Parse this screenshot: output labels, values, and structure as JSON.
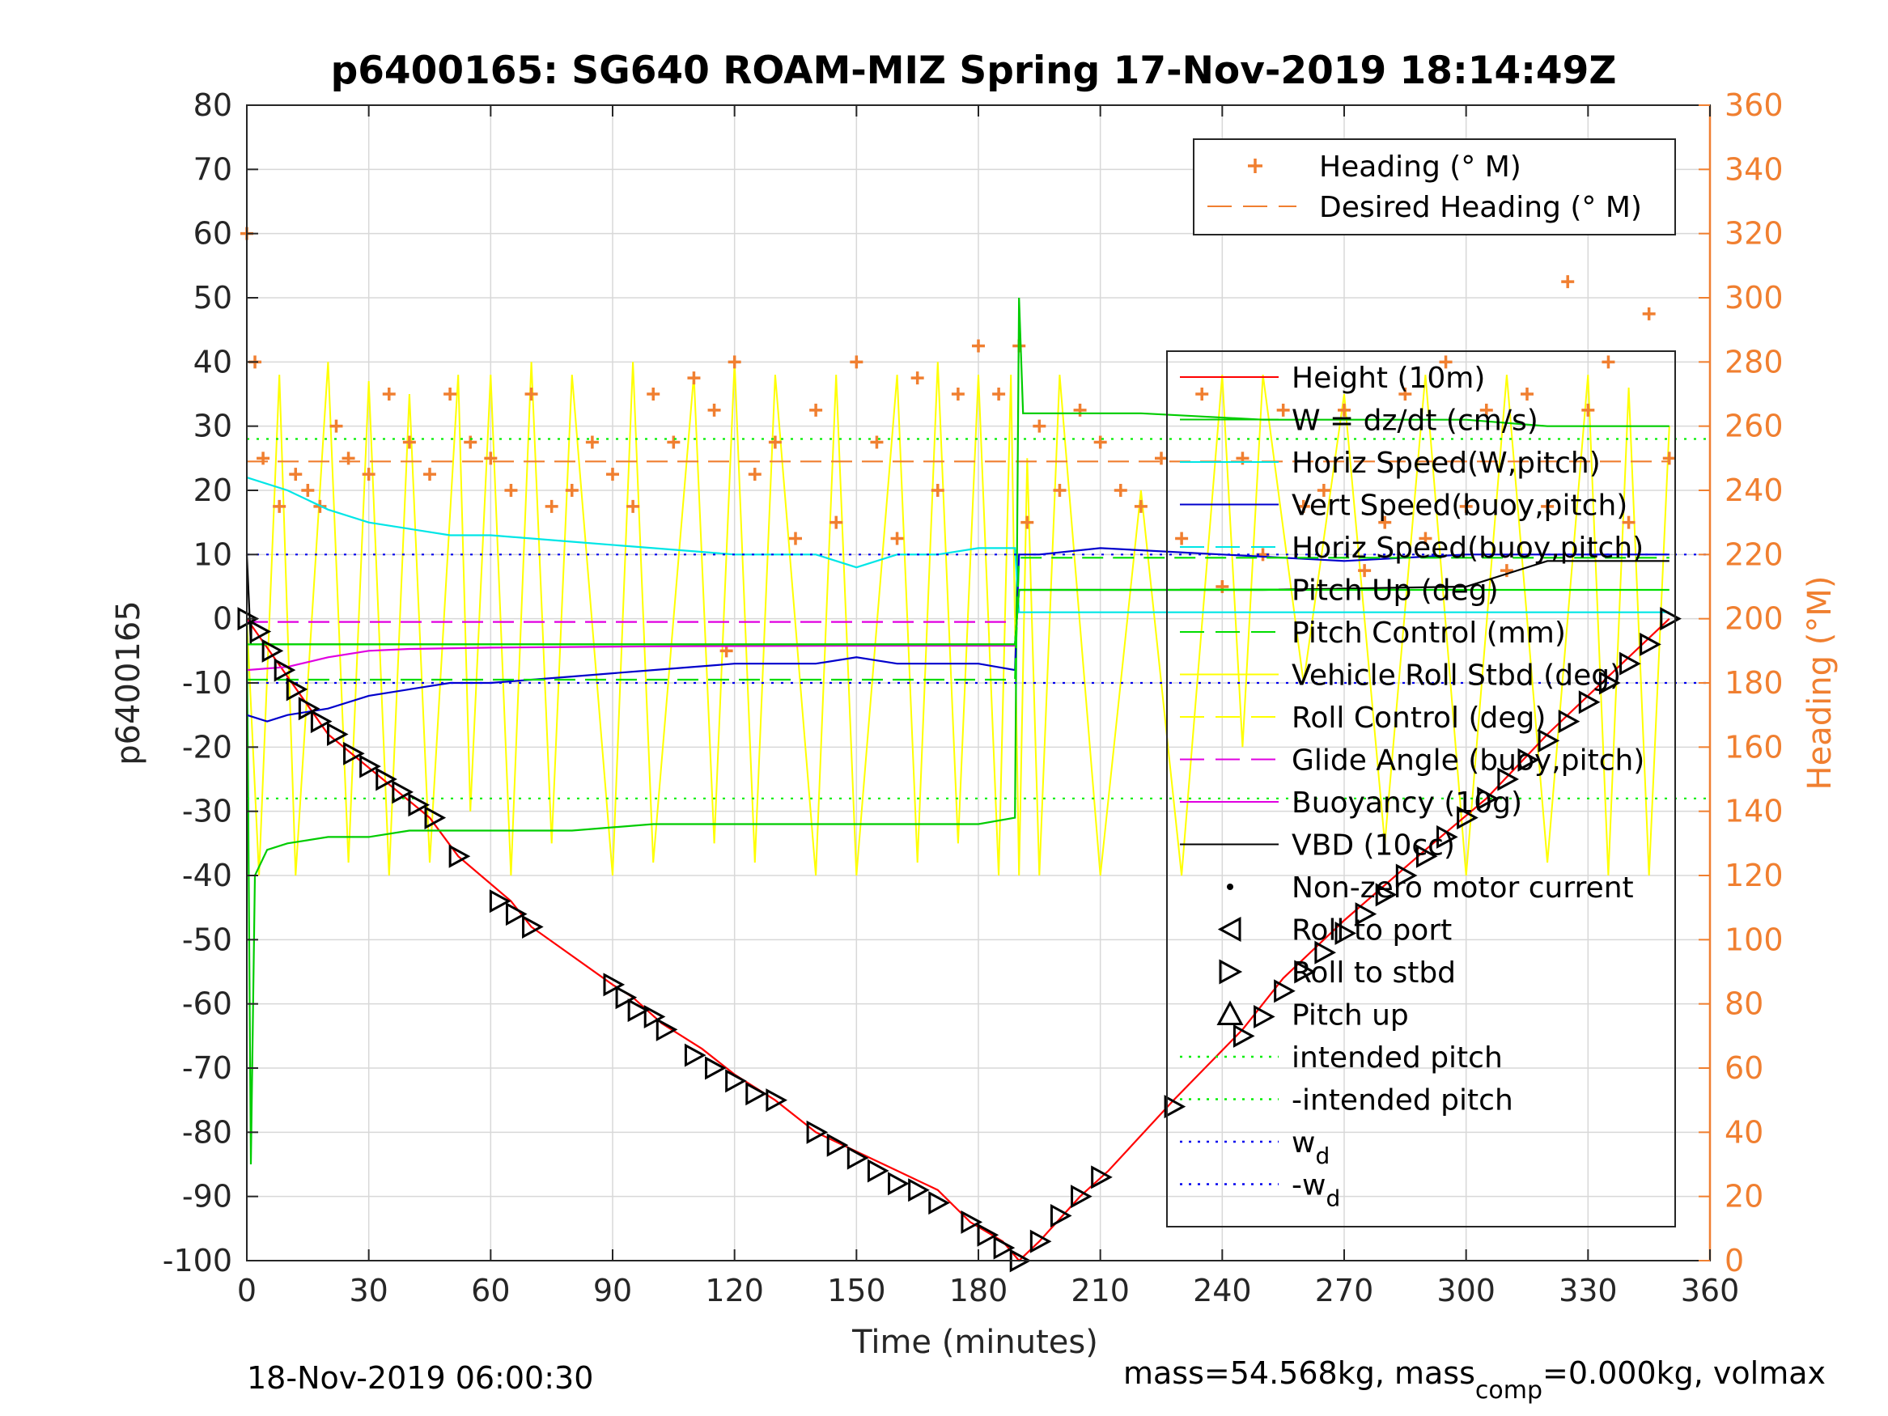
{
  "chart_data": {
    "type": "line",
    "title": "p6400165: SG640 ROAM-MIZ Spring 17-Nov-2019 18:14:49Z",
    "xlabel": "Time (minutes)",
    "ylabel": "p6400165",
    "ylabel_right": "Heading (°M)",
    "xlim": [
      0,
      360
    ],
    "ylim": [
      -100,
      80
    ],
    "ylim_right": [
      0,
      360
    ],
    "x_ticks": [
      "0",
      "30",
      "60",
      "90",
      "120",
      "150",
      "180",
      "210",
      "240",
      "270",
      "300",
      "330",
      "360"
    ],
    "y_ticks": [
      "-100",
      "-90",
      "-80",
      "-70",
      "-60",
      "-50",
      "-40",
      "-30",
      "-20",
      "-10",
      "0",
      "10",
      "20",
      "30",
      "40",
      "50",
      "60",
      "70",
      "80"
    ],
    "y_ticks_right": [
      "0",
      "20",
      "40",
      "60",
      "80",
      "100",
      "120",
      "140",
      "160",
      "180",
      "200",
      "220",
      "240",
      "260",
      "280",
      "300",
      "320",
      "340",
      "360"
    ],
    "grid": true,
    "footer_left": "18-Nov-2019 06:00:30",
    "footer_right_main": "mass=54.568kg, mass",
    "footer_right_sub": "comp",
    "footer_right_tail": "=0.000kg, volmax",
    "colors": {
      "orange": "#f07f30",
      "red": "#ff0000",
      "green": "#00d800",
      "cyan": "#00e6e6",
      "blue": "#0000cc",
      "yellow": "#ffff00",
      "magenta": "#e000e0",
      "black": "#000000"
    },
    "legend_heading": {
      "placement": "top-right",
      "entries": [
        {
          "label": "Heading (° M)",
          "style": "plus",
          "color": "#f07f30"
        },
        {
          "label": "Desired Heading (° M)",
          "style": "dash",
          "color": "#f07f30"
        }
      ]
    },
    "legend_main": {
      "placement": "right",
      "entries": [
        {
          "label": "Height (10m)",
          "style": "line",
          "color": "#ff0000"
        },
        {
          "label": "W = dz/dt (cm/s)",
          "style": "line",
          "color": "#00cc00"
        },
        {
          "label": "Horiz Speed(W,pitch)",
          "style": "line",
          "color": "#00e6e6"
        },
        {
          "label": "Vert Speed(buoy,pitch)",
          "style": "line",
          "color": "#0000cc"
        },
        {
          "label": "Horiz Speed(buoy,pitch)",
          "style": "dash",
          "color": "#00e6e6"
        },
        {
          "label": "Pitch Up (deg)",
          "style": "line",
          "color": "#00dd00"
        },
        {
          "label": "Pitch Control (mm)",
          "style": "dash",
          "color": "#00dd00"
        },
        {
          "label": "Vehicle Roll Stbd (deg)",
          "style": "line",
          "color": "#ffff00"
        },
        {
          "label": "Roll Control (deg)",
          "style": "dash",
          "color": "#ffff00"
        },
        {
          "label": "Glide Angle (buoy,pitch)",
          "style": "dash",
          "color": "#e000e0"
        },
        {
          "label": "Buoyancy (10g)",
          "style": "line",
          "color": "#e000e0"
        },
        {
          "label": "VBD (10cc)",
          "style": "line",
          "color": "#000000"
        },
        {
          "label": "Non-zero motor current",
          "style": "dot",
          "color": "#000000"
        },
        {
          "label": "Roll to port",
          "style": "tri-left",
          "color": "#000000"
        },
        {
          "label": "Roll to stbd",
          "style": "tri-right",
          "color": "#000000"
        },
        {
          "label": "Pitch up",
          "style": "tri-up",
          "color": "#000000"
        },
        {
          "label": "intended pitch",
          "style": "dot-line",
          "color": "#00ee00"
        },
        {
          "label": "-intended pitch",
          "style": "dot-line",
          "color": "#00ee00"
        },
        {
          "label": "w",
          "sub": "d",
          "style": "dot-line",
          "color": "#0000ee"
        },
        {
          "label": "-w",
          "sub": "d",
          "style": "dot-line",
          "color": "#0000ee"
        }
      ]
    },
    "series": [
      {
        "name": "Height (10m)",
        "color": "#ff0000",
        "x": [
          0,
          20,
          45,
          52,
          65,
          70,
          90,
          95,
          102,
          112,
          120,
          130,
          140,
          150,
          160,
          170,
          178,
          186,
          190,
          195,
          205,
          212,
          228,
          245,
          255,
          270,
          290,
          305,
          320,
          335,
          350
        ],
        "y": [
          0,
          -18,
          -31,
          -37,
          -44,
          -48,
          -57,
          -59,
          -63,
          -67,
          -71,
          -75,
          -80,
          -83,
          -86,
          -89,
          -94,
          -97,
          -100,
          -97,
          -90,
          -86,
          -75,
          -64,
          -56,
          -47,
          -36,
          -28,
          -18,
          -9,
          0
        ]
      },
      {
        "name": "Heading (° M)",
        "color": "#f07f30",
        "axis": "right",
        "x": [
          0,
          2,
          4,
          8,
          12,
          15,
          18,
          22,
          25,
          30,
          35,
          40,
          45,
          50,
          55,
          60,
          65,
          70,
          75,
          80,
          85,
          90,
          95,
          100,
          105,
          110,
          115,
          118,
          120,
          125,
          130,
          135,
          140,
          145,
          150,
          155,
          160,
          165,
          170,
          175,
          180,
          185,
          190,
          192,
          195,
          200,
          205,
          210,
          215,
          220,
          225,
          230,
          235,
          240,
          245,
          250,
          255,
          260,
          265,
          270,
          275,
          280,
          285,
          290,
          295,
          300,
          305,
          310,
          315,
          320,
          325,
          330,
          335,
          340,
          345,
          350
        ],
        "y": [
          320,
          280,
          250,
          235,
          245,
          240,
          235,
          260,
          250,
          245,
          270,
          255,
          245,
          270,
          255,
          250,
          240,
          270,
          235,
          240,
          255,
          245,
          235,
          270,
          255,
          275,
          265,
          190,
          280,
          245,
          255,
          225,
          265,
          230,
          280,
          255,
          225,
          275,
          240,
          270,
          285,
          270,
          285,
          230,
          260,
          240,
          265,
          255,
          240,
          235,
          250,
          225,
          270,
          210,
          250,
          220,
          265,
          235,
          240,
          265,
          215,
          230,
          270,
          225,
          280,
          235,
          265,
          215,
          270,
          235,
          305,
          265,
          280,
          230,
          295,
          250
        ]
      },
      {
        "name": "Desired Heading (° M)",
        "color": "#f07f30",
        "axis": "right",
        "dash": true,
        "x": [
          0,
          350
        ],
        "y": [
          249,
          249
        ]
      },
      {
        "name": "W = dz/dt (cm/s)",
        "color": "#00cc00",
        "x": [
          0,
          1,
          2,
          5,
          10,
          20,
          30,
          40,
          50,
          60,
          80,
          100,
          120,
          140,
          160,
          180,
          189,
          190,
          191,
          192,
          200,
          220,
          250,
          280,
          300,
          320,
          350
        ],
        "y": [
          0,
          -85,
          -40,
          -36,
          -35,
          -34,
          -34,
          -33,
          -33,
          -33,
          -33,
          -32,
          -32,
          -32,
          -32,
          -32,
          -31,
          50,
          32,
          32,
          32,
          32,
          31,
          31,
          31,
          30,
          30
        ]
      },
      {
        "name": "Horiz Speed(W,pitch)",
        "color": "#00e6e6",
        "x": [
          0,
          10,
          20,
          30,
          40,
          50,
          60,
          80,
          100,
          120,
          140,
          150,
          160,
          170,
          180,
          189,
          190,
          200,
          250,
          300,
          350
        ],
        "y": [
          22,
          20,
          17,
          15,
          14,
          13,
          13,
          12,
          11,
          10,
          10,
          8,
          10,
          10,
          11,
          11,
          1,
          1,
          1,
          1,
          1
        ]
      },
      {
        "name": "Vert Speed(buoy,pitch)",
        "color": "#0000cc",
        "x": [
          0,
          5,
          10,
          20,
          30,
          40,
          50,
          60,
          80,
          100,
          120,
          140,
          150,
          160,
          170,
          180,
          189,
          190,
          195,
          210,
          240,
          270,
          300,
          330,
          350
        ],
        "y": [
          -15,
          -16,
          -15,
          -14,
          -12,
          -11,
          -10,
          -10,
          -9,
          -8,
          -7,
          -7,
          -6,
          -7,
          -7,
          -7,
          -8,
          10,
          10,
          11,
          10,
          9,
          10,
          10,
          10
        ]
      },
      {
        "name": "Buoyancy (10g)",
        "color": "#e000e0",
        "x": [
          0,
          10,
          20,
          30,
          40,
          60,
          100,
          150,
          189
        ],
        "y": [
          -8,
          -7.5,
          -6,
          -5,
          -4.7,
          -4.5,
          -4.3,
          -4.2,
          -4.2
        ]
      },
      {
        "name": "Glide Angle (buoy,pitch)",
        "color": "#e000e0",
        "dash": true,
        "x": [
          0,
          189
        ],
        "y": [
          -0.5,
          -0.5
        ]
      },
      {
        "name": "VBD (10cc)",
        "color": "#000000",
        "x": [
          0,
          1,
          10,
          30,
          80,
          120,
          160,
          189,
          190,
          250,
          300,
          320,
          350
        ],
        "y": [
          10,
          -4,
          -4,
          -4,
          -4,
          -4,
          -4,
          -4,
          4.5,
          4.5,
          5,
          9,
          9
        ]
      },
      {
        "name": "Pitch Up (deg)",
        "color": "#00dd00",
        "x": [
          0,
          189,
          190,
          350
        ],
        "y": [
          -4,
          -4,
          4.5,
          4.5
        ]
      },
      {
        "name": "Pitch Control (mm)",
        "color": "#00dd00",
        "dash": true,
        "x": [
          0,
          189,
          190,
          350
        ],
        "y": [
          -9.5,
          -9.5,
          9.5,
          9.5
        ]
      },
      {
        "name": "intended pitch",
        "color": "#00ee00",
        "dotted": true,
        "x": [
          0,
          360
        ],
        "y": [
          28,
          28
        ]
      },
      {
        "name": "-intended pitch",
        "color": "#00ee00",
        "dotted": true,
        "x": [
          0,
          360
        ],
        "y": [
          -28,
          -28
        ]
      },
      {
        "name": "w_d",
        "color": "#0000ee",
        "dotted": true,
        "x": [
          0,
          360
        ],
        "y": [
          10,
          10
        ]
      },
      {
        "name": "-w_d",
        "color": "#0000ee",
        "dotted": true,
        "x": [
          0,
          360
        ],
        "y": [
          -10,
          -10
        ]
      },
      {
        "name": "Vehicle Roll Stbd (deg)",
        "color": "#ffff00",
        "x": [
          0,
          3,
          8,
          12,
          20,
          25,
          30,
          35,
          40,
          45,
          52,
          55,
          60,
          65,
          70,
          75,
          80,
          90,
          95,
          100,
          110,
          115,
          120,
          125,
          130,
          140,
          145,
          150,
          160,
          165,
          170,
          175,
          180,
          185,
          188,
          190,
          192,
          195,
          200,
          210,
          220,
          230,
          240,
          245,
          250,
          260,
          270,
          280,
          290,
          300,
          310,
          320,
          330,
          335,
          340,
          345,
          350
        ],
        "y": [
          0,
          -40,
          38,
          -40,
          40,
          -38,
          37,
          -40,
          35,
          -38,
          38,
          -30,
          38,
          -40,
          40,
          -35,
          38,
          -40,
          40,
          -38,
          38,
          -35,
          40,
          -38,
          38,
          -40,
          38,
          -40,
          38,
          -38,
          40,
          -35,
          38,
          -40,
          38,
          -40,
          25,
          -40,
          38,
          -40,
          20,
          -40,
          38,
          -20,
          38,
          -10,
          35,
          -35,
          38,
          -40,
          38,
          -38,
          38,
          -40,
          36,
          -40,
          30
        ]
      }
    ],
    "markers_roll_stbd": {
      "x": [
        0,
        3,
        6,
        9,
        12,
        15,
        18,
        22,
        26,
        30,
        34,
        38,
        42,
        46,
        52,
        62,
        66,
        70,
        90,
        93,
        96,
        100,
        103,
        110,
        115,
        120,
        125,
        130,
        140,
        145,
        150,
        155,
        160,
        165,
        170,
        178,
        182,
        186,
        190,
        195,
        200,
        205,
        210,
        228,
        245,
        250,
        255,
        260,
        265,
        270,
        275,
        280,
        285,
        290,
        295,
        300,
        305,
        310,
        315,
        320,
        325,
        330,
        335,
        340,
        345,
        350
      ],
      "y": [
        0,
        -2,
        -5,
        -8,
        -11,
        -14,
        -16,
        -18,
        -21,
        -23,
        -25,
        -27,
        -29,
        -31,
        -37,
        -44,
        -46,
        -48,
        -57,
        -59,
        -61,
        -62,
        -64,
        -68,
        -70,
        -72,
        -74,
        -75,
        -80,
        -82,
        -84,
        -86,
        -88,
        -89,
        -91,
        -94,
        -96,
        -98,
        -100,
        -97,
        -93,
        -90,
        -87,
        -76,
        -65,
        -62,
        -58,
        -55,
        -52,
        -49,
        -46,
        -43,
        -40,
        -37,
        -34,
        -31,
        -28,
        -25,
        -22,
        -19,
        -16,
        -13,
        -10,
        -7,
        -4,
        0
      ]
    }
  }
}
